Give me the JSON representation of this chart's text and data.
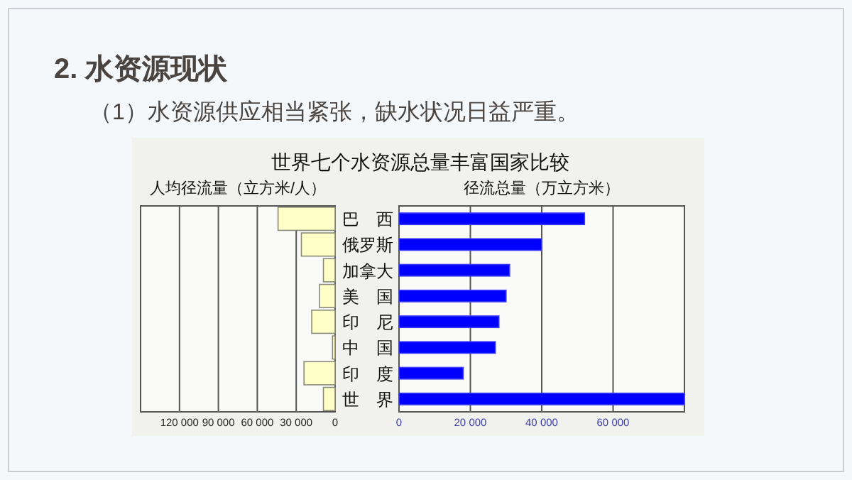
{
  "chart_data": [
    {
      "type": "bar",
      "orientation": "horizontal",
      "title": "世界七个水资源总量丰富国家比较",
      "annotations": [
        "2. 水资源现状",
        "（1）水资源供应相当紧张，缺水状况日益严重。"
      ],
      "xlabel": "人均径流量（立方米/人）",
      "categories": [
        null,
        null,
        null,
        null,
        null,
        null,
        null,
        null
      ],
      "values": [
        44000,
        26000,
        9000,
        12000,
        18000,
        2000,
        24000,
        9000
      ],
      "color": "#ffffc8",
      "xlim": [
        150000,
        0
      ],
      "xticks": [
        {
          "value": 120000,
          "label": "120 000"
        },
        {
          "value": 90000,
          "label": "90 000"
        },
        {
          "value": 60000,
          "label": "60 000"
        },
        {
          "value": 30000,
          "label": "30 000"
        },
        0
      ],
      "grid": "x",
      "tick_labels": "x"
    },
    {
      "type": "bar",
      "orientation": "horizontal",
      "xlabel": "径流总量（万立方米）",
      "categories": [
        "巴　西",
        "俄罗斯",
        "加拿大",
        "美　国",
        "印　尼",
        "中　国",
        "印　度",
        "世　界"
      ],
      "values": [
        52000,
        40000,
        31000,
        30000,
        28000,
        27000,
        18000,
        80000
      ],
      "color": "#0000ff",
      "xlim": [
        0,
        80000
      ],
      "xticks": [
        0,
        {
          "value": 20000,
          "label": "20 000"
        },
        {
          "value": 40000,
          "label": "40 000"
        },
        {
          "value": 60000,
          "label": "60 000"
        }
      ],
      "grid": "x"
    }
  ]
}
